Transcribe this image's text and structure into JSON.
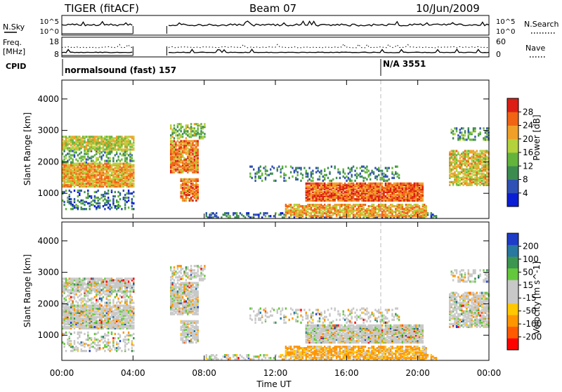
{
  "header": {
    "radar": "TIGER (fitACF)",
    "beam": "Beam 07",
    "date": "10/Jun/2009"
  },
  "side_labels": {
    "nsky": "N.Sky",
    "freq": "Freq.",
    "freq_unit": "[MHz]",
    "cpid": "CPID",
    "nsearch": "N.Search",
    "nave": "Nave"
  },
  "aux_ticks": {
    "noise_left": [
      "10^5",
      "10^0"
    ],
    "noise_right": [
      "10^5",
      "10^0"
    ],
    "freq_left": [
      "18",
      "8"
    ],
    "freq_right": [
      "60",
      "0"
    ]
  },
  "cpid_segments": [
    {
      "label": "normalsound (fast) 157",
      "start": "00:00"
    },
    {
      "label": "N/A 3551",
      "start": "18:05"
    }
  ],
  "colors": {
    "power_scale": [
      "#0a1ed6",
      "#2f50b4",
      "#3c8c50",
      "#64b43c",
      "#b4d23c",
      "#f0a028",
      "#f06414",
      "#dc1e14"
    ],
    "velocity_scale": [
      "#ff0000",
      "#ff5a00",
      "#ff9600",
      "#ffc800",
      "#c8c8c8",
      "#c8c8c8",
      "#64c83c",
      "#3c9650",
      "#2878a0",
      "#1e3cc8"
    ]
  },
  "chart_data": [
    {
      "type": "heatmap",
      "title": "Power",
      "xlabel": "",
      "ylabel": "Slant Range [km]",
      "x_ticks": [
        "00:00",
        "04:00",
        "08:00",
        "12:00",
        "16:00",
        "20:00",
        "00:00"
      ],
      "y_ticks": [
        "1000",
        "2000",
        "3000",
        "4000"
      ],
      "ylim": [
        200,
        4600
      ],
      "colorbar_label": "Power [dB]",
      "colorbar_ticks": [
        "4",
        "8",
        "12",
        "16",
        "20",
        "24",
        "28"
      ],
      "colorbar_range": [
        0,
        32
      ],
      "data_gaps_ut": [
        [
          4.0,
          5.9
        ]
      ]
    },
    {
      "type": "heatmap",
      "title": "Velocity",
      "xlabel": "Time UT",
      "ylabel": "Slant Range [km]",
      "x_ticks": [
        "00:00",
        "04:00",
        "08:00",
        "12:00",
        "16:00",
        "20:00",
        "00:00"
      ],
      "y_ticks": [
        "1000",
        "2000",
        "3000",
        "4000"
      ],
      "ylim": [
        200,
        4600
      ],
      "colorbar_label": "Velocity [m s^-1]",
      "colorbar_ticks": [
        "-200",
        "-100",
        "-50",
        "-15",
        "15",
        "50",
        "100",
        "200"
      ],
      "colorbar_range": [
        -250,
        250
      ],
      "data_gaps_ut": [
        [
          4.0,
          5.9
        ]
      ]
    }
  ]
}
